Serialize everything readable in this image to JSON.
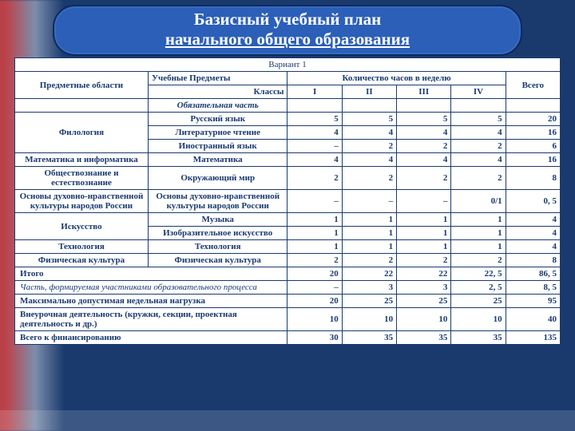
{
  "title": {
    "line1": "Базисный учебный план",
    "line2": "начального общего образования",
    "variant": "Вариант 1"
  },
  "header": {
    "areas": "Предметные области",
    "subjects": "Учебные Предметы",
    "classes": "Классы",
    "hours": "Количество часов в неделю",
    "total": "Всего",
    "cols": [
      "I",
      "II",
      "III",
      "IV"
    ]
  },
  "sectionMandatory": "Обязательная часть",
  "rows": [
    {
      "area": "Филология",
      "areaRowspan": 3,
      "subject": "Русский язык",
      "v": [
        "5",
        "5",
        "5",
        "5",
        "20"
      ]
    },
    {
      "subject": "Литературное чтение",
      "v": [
        "4",
        "4",
        "4",
        "4",
        "16"
      ]
    },
    {
      "subject": "Иностранный язык",
      "v": [
        "–",
        "2",
        "2",
        "2",
        "6"
      ]
    },
    {
      "area": "Математика и информатика",
      "areaRowspan": 1,
      "subject": "Математика",
      "v": [
        "4",
        "4",
        "4",
        "4",
        "16"
      ]
    },
    {
      "area": "Обществознание и естествознание",
      "areaRowspan": 1,
      "subject": "Окружающий мир",
      "v": [
        "2",
        "2",
        "2",
        "2",
        "8"
      ]
    },
    {
      "area": "Основы духовно-нравственной культуры народов России",
      "areaRowspan": 1,
      "subject": "Основы духовно-нравственной культуры народов России",
      "v": [
        "–",
        "–",
        "–",
        "0/1",
        "0, 5"
      ]
    },
    {
      "area": "Искусство",
      "areaRowspan": 2,
      "subject": "Музыка",
      "v": [
        "1",
        "1",
        "1",
        "1",
        "4"
      ]
    },
    {
      "subject": "Изобразительное искусство",
      "v": [
        "1",
        "1",
        "1",
        "1",
        "4"
      ]
    },
    {
      "area": "Технология",
      "areaRowspan": 1,
      "subject": "Технология",
      "v": [
        "1",
        "1",
        "1",
        "1",
        "4"
      ]
    },
    {
      "area": "Физическая культура",
      "areaRowspan": 1,
      "subject": "Физическая культура",
      "v": [
        "2",
        "2",
        "2",
        "2",
        "8"
      ]
    }
  ],
  "summary": [
    {
      "label": "Итого",
      "italic": false,
      "v": [
        "20",
        "22",
        "22",
        "22, 5",
        "86, 5"
      ]
    },
    {
      "label": "Часть, формируемая участниками образовательного процесса",
      "italic": true,
      "v": [
        "–",
        "3",
        "3",
        "2, 5",
        "8, 5"
      ]
    },
    {
      "label": "Максимально допустимая недельная нагрузка",
      "italic": false,
      "v": [
        "20",
        "25",
        "25",
        "25",
        "95"
      ]
    },
    {
      "label": "Внеурочная деятельность (кружки, секции, проектная деятельность и др.)",
      "italic": false,
      "v": [
        "10",
        "10",
        "10",
        "10",
        "40"
      ]
    },
    {
      "label": "Всего к финансированию",
      "italic": false,
      "v": [
        "30",
        "35",
        "35",
        "35",
        "135"
      ]
    }
  ],
  "colors": {
    "pill_bg": "#2b5fb8",
    "border": "#1a3a6e",
    "text": "#1a3a6e"
  }
}
